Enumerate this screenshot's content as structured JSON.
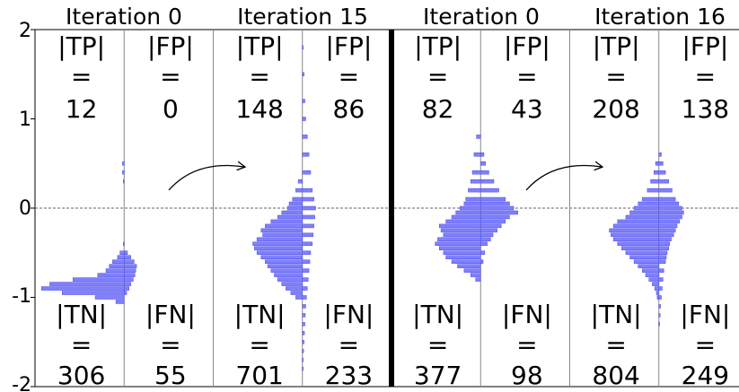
{
  "chart_data": {
    "type": "bar",
    "orientation": "horizontal-histograms",
    "y_ticks": [
      "2",
      "1",
      "0",
      "-1",
      "-2"
    ],
    "ylim": [
      -2,
      2
    ],
    "threshold": 0,
    "bar_color": "#7f7fff",
    "bar_edge_color": "#4c4cdd",
    "panels": [
      {
        "title": "Iteration 0",
        "counts": {
          "tp_label": "|TP|",
          "tp": "12",
          "fp_label": "|FP|",
          "fp": "0",
          "tn_label": "|TN|",
          "tn": "306",
          "fn_label": "|FN|",
          "fn": "55",
          "eq": "="
        },
        "left_hist": {
          "y": [
            0.5,
            0.4,
            0.3,
            0.2,
            0.1,
            0.0,
            -0.1,
            -0.2,
            -0.3,
            -0.4,
            -0.5,
            -0.55,
            -0.6,
            -0.65,
            -0.7,
            -0.75,
            -0.8,
            -0.85,
            -0.9,
            -0.95,
            -1.0,
            -1.05
          ],
          "v": [
            0.02,
            0.02,
            0.01,
            0,
            0,
            0,
            0,
            0,
            0,
            0.01,
            0.05,
            0.08,
            0.14,
            0.18,
            0.22,
            0.32,
            0.62,
            0.9,
            1.0,
            0.75,
            0.35,
            0.1
          ]
        },
        "right_hist": {
          "y": [
            -0.5,
            -0.55,
            -0.6,
            -0.65,
            -0.7,
            -0.75,
            -0.8,
            -0.85,
            -0.9,
            -0.95
          ],
          "v": [
            0.04,
            0.08,
            0.12,
            0.15,
            0.14,
            0.13,
            0.11,
            0.08,
            0.06,
            0.03
          ]
        }
      },
      {
        "title": "Iteration 15",
        "counts": {
          "tp_label": "|TP|",
          "tp": "148",
          "fp_label": "|FP|",
          "fp": "86",
          "tn_label": "|TN|",
          "tn": "701",
          "fn_label": "|FN|",
          "fn": "233",
          "eq": "="
        },
        "left_hist": {
          "y": [
            0.3,
            0.2,
            0.1,
            0.05,
            0.0,
            -0.05,
            -0.1,
            -0.15,
            -0.2,
            -0.25,
            -0.3,
            -0.35,
            -0.4,
            -0.45,
            -0.5,
            -0.55,
            -0.6,
            -0.65,
            -0.7,
            -0.75,
            -0.8,
            -0.85,
            -0.9,
            -0.95,
            -1.0
          ],
          "v": [
            0.05,
            0.08,
            0.12,
            0.16,
            0.18,
            0.25,
            0.3,
            0.38,
            0.45,
            0.5,
            0.48,
            0.55,
            0.6,
            0.58,
            0.55,
            0.5,
            0.45,
            0.42,
            0.38,
            0.34,
            0.3,
            0.25,
            0.2,
            0.14,
            0.08
          ]
        },
        "right_hist": {
          "y": [
            1.8,
            1.5,
            1.2,
            1.0,
            0.8,
            0.6,
            0.4,
            0.2,
            0.1,
            0.0,
            -0.1,
            -0.2,
            -0.3,
            -0.4,
            -0.5,
            -0.6,
            -0.7,
            -0.8,
            -0.9,
            -1.0,
            -1.1,
            -1.2,
            -1.3,
            -1.4,
            -1.5,
            -1.6,
            -1.7,
            -1.8
          ],
          "v": [
            0.01,
            0.02,
            0.03,
            0.04,
            0.06,
            0.08,
            0.1,
            0.12,
            0.14,
            0.16,
            0.15,
            0.14,
            0.13,
            0.12,
            0.1,
            0.09,
            0.08,
            0.07,
            0.06,
            0.05,
            0.04,
            0.035,
            0.03,
            0.025,
            0.02,
            0.015,
            0.01,
            0.01
          ]
        }
      },
      {
        "title": "Iteration 0",
        "counts": {
          "tp_label": "|TP|",
          "tp": "82",
          "fp_label": "|FP|",
          "fp": "43",
          "tn_label": "|TN|",
          "tn": "377",
          "fn_label": "|FN|",
          "fn": "98",
          "eq": "="
        },
        "left_hist": {
          "y": [
            0.8,
            0.6,
            0.4,
            0.3,
            0.2,
            0.1,
            0.05,
            0.0,
            -0.05,
            -0.1,
            -0.15,
            -0.2,
            -0.25,
            -0.3,
            -0.35,
            -0.4,
            -0.45,
            -0.5,
            -0.55,
            -0.6,
            -0.65,
            -0.7,
            -0.75,
            -0.8
          ],
          "v": [
            0.05,
            0.08,
            0.1,
            0.12,
            0.15,
            0.18,
            0.2,
            0.25,
            0.3,
            0.35,
            0.42,
            0.5,
            0.48,
            0.45,
            0.52,
            0.55,
            0.5,
            0.45,
            0.42,
            0.35,
            0.28,
            0.2,
            0.12,
            0.06
          ]
        },
        "right_hist": {
          "y": [
            0.6,
            0.5,
            0.4,
            0.3,
            0.2,
            0.1,
            0.05,
            0.0,
            -0.05,
            -0.1,
            -0.15,
            -0.2,
            -0.25,
            -0.3,
            -0.35,
            -0.4,
            -0.5,
            -0.6
          ],
          "v": [
            0.04,
            0.06,
            0.1,
            0.16,
            0.22,
            0.3,
            0.35,
            0.4,
            0.45,
            0.35,
            0.3,
            0.25,
            0.2,
            0.15,
            0.12,
            0.08,
            0.05,
            0.03
          ]
        }
      },
      {
        "title": "Iteration 16",
        "counts": {
          "tp_label": "|TP|",
          "tp": "208",
          "fp_label": "|FP|",
          "fp": "138",
          "tn_label": "|TN|",
          "tn": "804",
          "fn_label": "|FN|",
          "fn": "249",
          "eq": "="
        },
        "left_hist": {
          "y": [
            0.5,
            0.4,
            0.3,
            0.2,
            0.1,
            0.05,
            0.0,
            -0.05,
            -0.1,
            -0.15,
            -0.2,
            -0.25,
            -0.3,
            -0.35,
            -0.4,
            -0.45,
            -0.5,
            -0.55,
            -0.6,
            -0.65,
            -0.7,
            -0.75,
            -0.8,
            -0.85,
            -0.9,
            -0.95,
            -1.0
          ],
          "v": [
            0.04,
            0.06,
            0.1,
            0.14,
            0.2,
            0.25,
            0.3,
            0.35,
            0.4,
            0.5,
            0.55,
            0.6,
            0.58,
            0.55,
            0.5,
            0.45,
            0.4,
            0.35,
            0.3,
            0.25,
            0.2,
            0.16,
            0.12,
            0.08,
            0.05,
            0.03,
            0.02
          ]
        },
        "right_hist": {
          "y": [
            0.6,
            0.5,
            0.4,
            0.3,
            0.2,
            0.1,
            0.05,
            0.0,
            -0.05,
            -0.1,
            -0.15,
            -0.2,
            -0.25,
            -0.3,
            -0.35,
            -0.4,
            -0.45,
            -0.5,
            -0.55,
            -0.6,
            -0.7,
            -0.8,
            -0.9,
            -1.0,
            -1.1,
            -1.2,
            -1.3
          ],
          "v": [
            0.03,
            0.05,
            0.08,
            0.12,
            0.16,
            0.2,
            0.24,
            0.28,
            0.3,
            0.28,
            0.25,
            0.22,
            0.2,
            0.18,
            0.15,
            0.13,
            0.12,
            0.1,
            0.09,
            0.08,
            0.06,
            0.05,
            0.04,
            0.03,
            0.02,
            0.015,
            0.01
          ]
        }
      }
    ]
  }
}
